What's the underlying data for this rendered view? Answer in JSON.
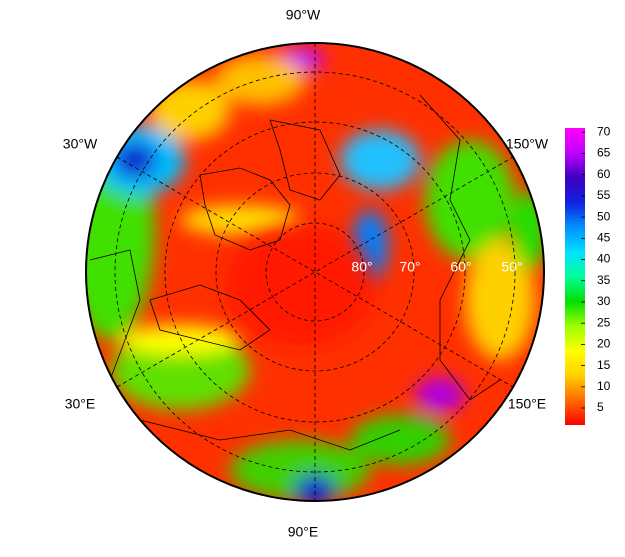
{
  "map": {
    "longitude_labels": [
      "90°W",
      "30°W",
      "150°W",
      "30°E",
      "150°E",
      "90°E"
    ],
    "latitude_labels": [
      "80°",
      "70°",
      "60°",
      "50°"
    ]
  },
  "colorbar": {
    "range": [
      1,
      71
    ],
    "ticks": [
      5,
      10,
      15,
      20,
      25,
      30,
      35,
      40,
      45,
      50,
      55,
      60,
      65,
      70
    ],
    "colors": [
      "#ff0000",
      "#ff6a00",
      "#ffd000",
      "#ffff00",
      "#9cff00",
      "#00e000",
      "#00ff9c",
      "#00e0ff",
      "#0090ff",
      "#1020e0",
      "#4000c0",
      "#c000ff",
      "#ff00ff"
    ]
  }
}
